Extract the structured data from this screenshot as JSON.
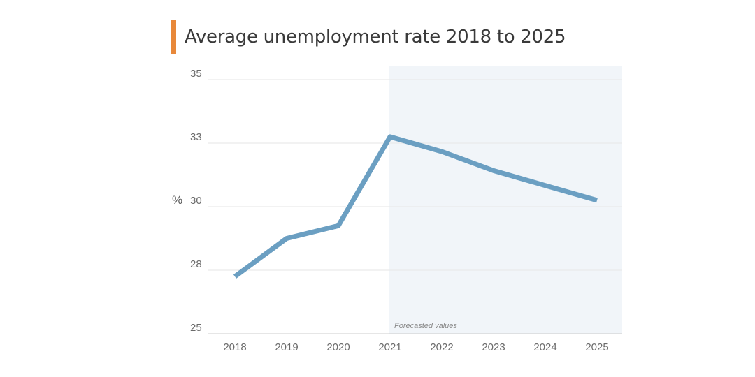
{
  "colors": {
    "accent": "#e8883a",
    "line": "#6b9fc2",
    "forecast_band": "#f1f5f9",
    "grid": "#e6e6e6",
    "axis": "#cccccc"
  },
  "chart_data": {
    "type": "line",
    "title": "Average unemployment rate 2018 to 2025",
    "ylabel": "%",
    "xlabel": "",
    "x": [
      "2018",
      "2019",
      "2020",
      "2021",
      "2022",
      "2023",
      "2024",
      "2025"
    ],
    "series": [
      {
        "values": [
          27.7,
          29.0,
          29.4,
          33.2,
          32.6,
          31.7,
          31.0,
          30.3
        ]
      }
    ],
    "y_ticks": [
      25,
      28,
      30,
      33,
      35
    ],
    "y_tick_labels": [
      "25",
      "28",
      "30",
      "33",
      "35"
    ],
    "ylim": [
      25,
      35
    ],
    "grid": true,
    "forecast": {
      "start": "2021",
      "end": "2025",
      "label": "Forecasted values"
    }
  }
}
